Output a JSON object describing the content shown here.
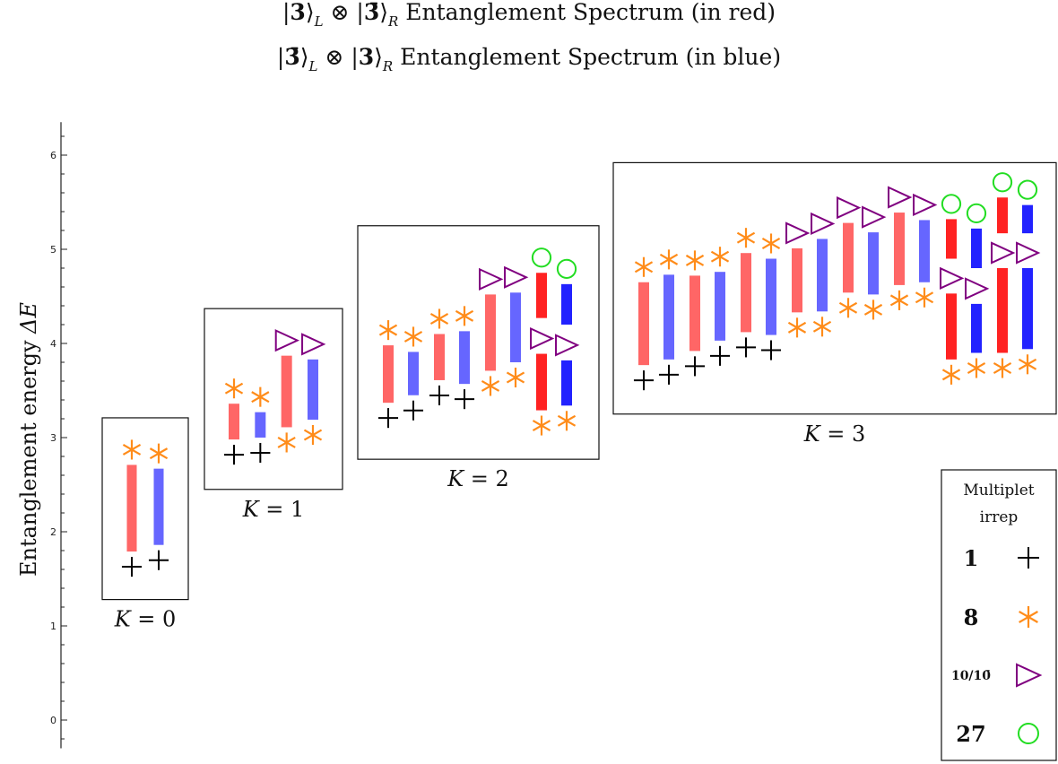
{
  "chart_data": {
    "type": "range-bar-spectrum",
    "title_lines": [
      "|3⟩_L ⊗ |3̄⟩_R Entanglement Spectrum (in red)",
      "|3̄⟩_L ⊗ |3⟩_R Entanglement Spectrum (in blue)"
    ],
    "title_parts": [
      {
        "a": "|",
        "b": "3",
        "c": "⟩",
        "d": "L",
        "e": " ⊗ |",
        "f": "3̄",
        "g": "⟩",
        "h": "R",
        "i": "  Entanglement Spectrum (in red)"
      },
      {
        "a": "|",
        "b": "3̄",
        "c": "⟩",
        "d": "L",
        "e": " ⊗ |",
        "f": "3",
        "g": "⟩",
        "h": "R",
        "i": "  Entanglement Spectrum (in blue)"
      }
    ],
    "ylabel": "Entanglement energy ΔE",
    "ylabel_text": "Entanglement energy ",
    "ylabel_symbol": "ΔE",
    "ylim": [
      -0.3,
      6.35
    ],
    "yticks": [
      0,
      1,
      2,
      3,
      4,
      5,
      6
    ],
    "series": [
      {
        "name": "|3⟩_L ⊗ |3̄⟩_R",
        "color": "#ff6666",
        "color_strong": "#ff2222"
      },
      {
        "name": "|3̄⟩_L ⊗ |3⟩_R",
        "color": "#6666ff",
        "color_strong": "#2222ff"
      }
    ],
    "marker_colors": {
      "1": "#000000",
      "8": "#ff8c1a",
      "10": "#800080",
      "27": "#22dd22"
    },
    "groups": [
      {
        "label": "K = 0",
        "box": [
          1.28,
          3.21
        ],
        "bars": [
          {
            "series": 0,
            "ymin": 1.79,
            "ymax": 2.71,
            "top": "8",
            "bottom": "1"
          },
          {
            "series": 1,
            "ymin": 1.86,
            "ymax": 2.67,
            "top": "8",
            "bottom": "1"
          }
        ]
      },
      {
        "label": "K = 1",
        "box": [
          2.45,
          4.37
        ],
        "bars": [
          {
            "series": 0,
            "ymin": 2.98,
            "ymax": 3.36,
            "top": "8",
            "bottom": "1"
          },
          {
            "series": 1,
            "ymin": 3.0,
            "ymax": 3.27,
            "top": "8",
            "bottom": "1"
          },
          {
            "series": 0,
            "ymin": 3.11,
            "ymax": 3.87,
            "top": "10",
            "bottom": "8"
          },
          {
            "series": 1,
            "ymin": 3.19,
            "ymax": 3.83,
            "top": "10",
            "bottom": "8"
          }
        ]
      },
      {
        "label": "K = 2",
        "box": [
          2.77,
          5.25
        ],
        "bars": [
          {
            "series": 0,
            "ymin": 3.37,
            "ymax": 3.98,
            "top": "8",
            "bottom": "1"
          },
          {
            "series": 1,
            "ymin": 3.45,
            "ymax": 3.91,
            "top": "8",
            "bottom": "1"
          },
          {
            "series": 0,
            "ymin": 3.61,
            "ymax": 4.1,
            "top": "8",
            "bottom": "1"
          },
          {
            "series": 1,
            "ymin": 3.57,
            "ymax": 4.13,
            "top": "8",
            "bottom": "1"
          },
          {
            "series": 0,
            "ymin": 3.71,
            "ymax": 4.52,
            "top": "10",
            "bottom": "8"
          },
          {
            "series": 1,
            "ymin": 3.8,
            "ymax": 4.54,
            "top": "10",
            "bottom": "8"
          },
          {
            "series": 0,
            "ymin": 4.27,
            "ymax": 4.75,
            "top": "27",
            "bottom": null,
            "strong": true
          },
          {
            "series": 1,
            "ymin": 4.2,
            "ymax": 4.63,
            "top": "27",
            "bottom": null,
            "strong": true
          },
          {
            "series": 0,
            "ymin": 3.29,
            "ymax": 3.89,
            "top": "10",
            "bottom": "8",
            "strong": true
          },
          {
            "series": 1,
            "ymin": 3.34,
            "ymax": 3.82,
            "top": "10",
            "bottom": "8",
            "strong": true
          }
        ]
      },
      {
        "label": "K = 3",
        "box": [
          3.25,
          5.92
        ],
        "bars": [
          {
            "series": 0,
            "ymin": 3.77,
            "ymax": 4.65,
            "top": "8",
            "bottom": "1"
          },
          {
            "series": 1,
            "ymin": 3.83,
            "ymax": 4.73,
            "top": "8",
            "bottom": "1"
          },
          {
            "series": 0,
            "ymin": 3.92,
            "ymax": 4.72,
            "top": "8",
            "bottom": "1"
          },
          {
            "series": 1,
            "ymin": 4.03,
            "ymax": 4.76,
            "top": "8",
            "bottom": "1"
          },
          {
            "series": 0,
            "ymin": 4.12,
            "ymax": 4.96,
            "top": "8",
            "bottom": "1"
          },
          {
            "series": 1,
            "ymin": 4.09,
            "ymax": 4.9,
            "top": "8",
            "bottom": "1"
          },
          {
            "series": 0,
            "ymin": 4.33,
            "ymax": 5.01,
            "top": "10",
            "bottom": "8"
          },
          {
            "series": 1,
            "ymin": 4.34,
            "ymax": 5.11,
            "top": "10",
            "bottom": "8"
          },
          {
            "series": 0,
            "ymin": 4.54,
            "ymax": 5.28,
            "top": "10",
            "bottom": "8"
          },
          {
            "series": 1,
            "ymin": 4.52,
            "ymax": 5.18,
            "top": "10",
            "bottom": "8"
          },
          {
            "series": 0,
            "ymin": 4.62,
            "ymax": 5.39,
            "top": "10",
            "bottom": "8"
          },
          {
            "series": 1,
            "ymin": 4.65,
            "ymax": 5.31,
            "top": "10",
            "bottom": "8"
          },
          {
            "series": 0,
            "ymin": 4.9,
            "ymax": 5.32,
            "top": "27",
            "bottom": null,
            "strong": true
          },
          {
            "series": 1,
            "ymin": 4.8,
            "ymax": 5.22,
            "top": "27",
            "bottom": null,
            "strong": true
          },
          {
            "series": 0,
            "ymin": 5.17,
            "ymax": 5.55,
            "top": "27",
            "bottom": null,
            "strong": true
          },
          {
            "series": 1,
            "ymin": 5.17,
            "ymax": 5.47,
            "top": "27",
            "bottom": null,
            "strong": true
          },
          {
            "series": 0,
            "ymin": 3.83,
            "ymax": 4.53,
            "top": "10",
            "bottom": "8",
            "strong": true
          },
          {
            "series": 1,
            "ymin": 3.9,
            "ymax": 4.42,
            "top": "10",
            "bottom": "8",
            "strong": true
          },
          {
            "series": 0,
            "ymin": 3.9,
            "ymax": 4.8,
            "top": "10",
            "bottom": "8",
            "strong": true
          },
          {
            "series": 1,
            "ymin": 3.94,
            "ymax": 4.8,
            "top": "10",
            "bottom": "8",
            "strong": true
          }
        ]
      }
    ],
    "legend": {
      "title_lines": [
        "Multiplet",
        "irrep"
      ],
      "placement": "bottom-right",
      "entries": [
        {
          "label": "1",
          "marker": "1"
        },
        {
          "label": "8",
          "marker": "8"
        },
        {
          "label": "10/10̄",
          "marker": "10"
        },
        {
          "label": "27",
          "marker": "27"
        }
      ]
    }
  }
}
